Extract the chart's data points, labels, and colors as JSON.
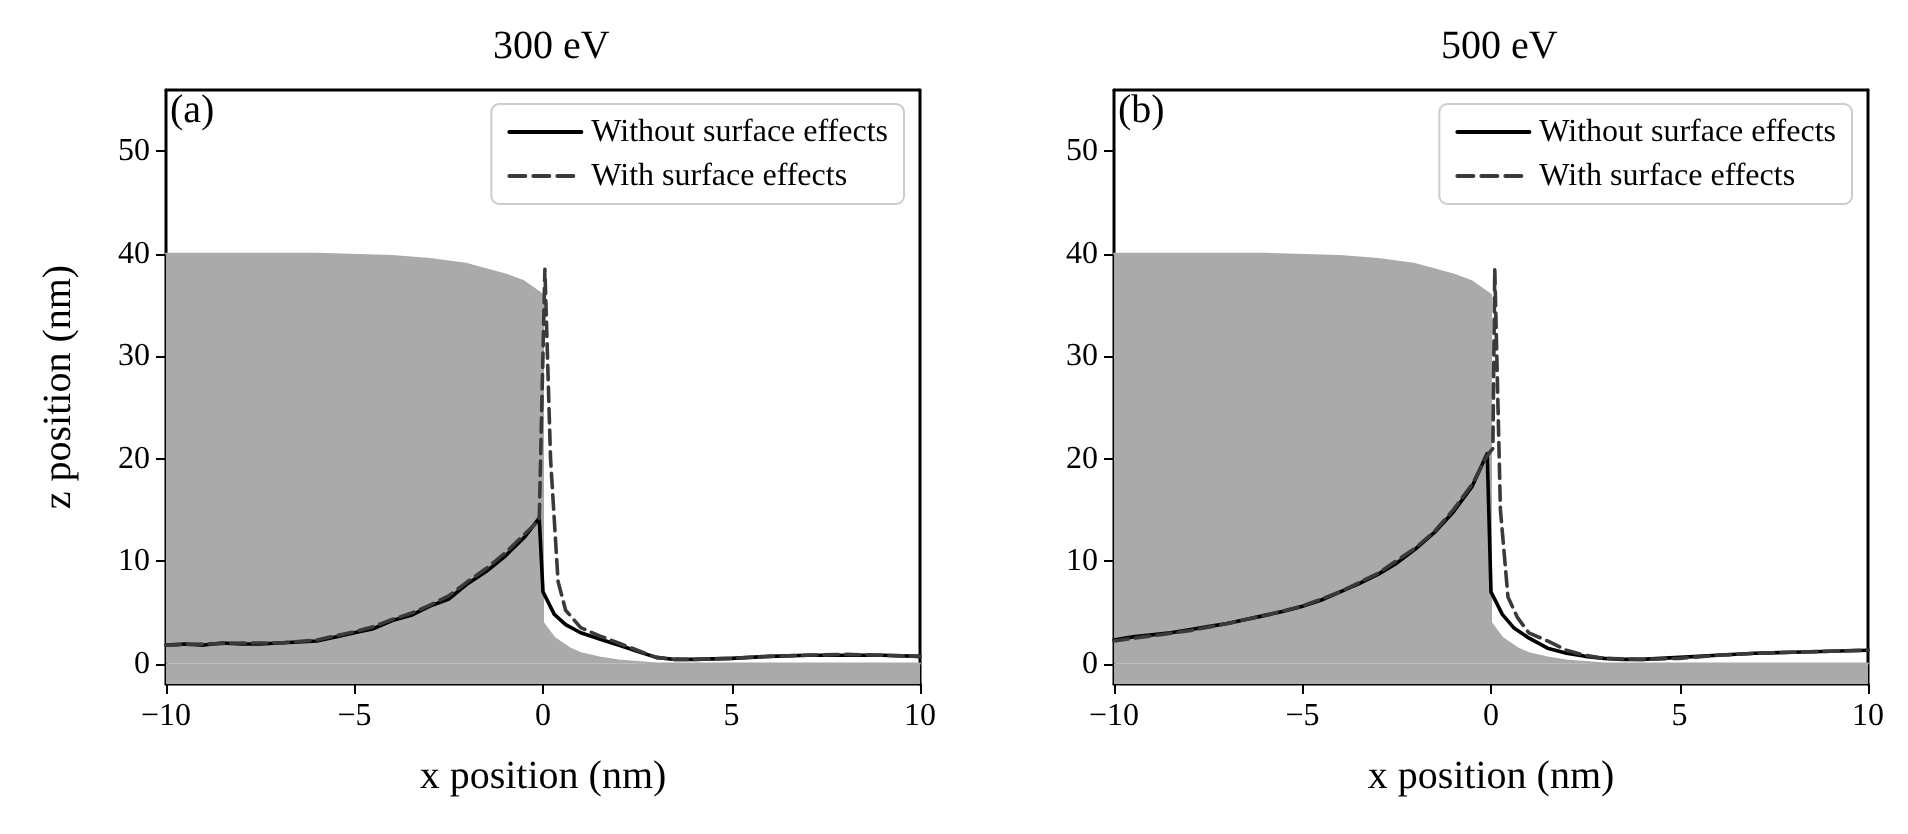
{
  "chart_data": [
    {
      "type": "line",
      "title": "300 eV",
      "xlabel": "x position (nm)",
      "ylabel": "z position (nm)",
      "annotations": [
        "(a)"
      ],
      "xlim": [
        -10,
        10
      ],
      "ylim": [
        -2,
        56
      ],
      "xticks": [
        -10,
        -5,
        0,
        5,
        10
      ],
      "yticks": [
        0,
        10,
        20,
        30,
        40,
        50
      ],
      "legend": "top right",
      "bands": [
        {
          "axis": "y",
          "from": -2,
          "to": 0,
          "color": "#aaaaaa"
        }
      ],
      "series": [
        {
          "type": "area",
          "color": "#aaaaaa",
          "x": [
            -10,
            -6,
            -4,
            -3,
            -2,
            -1,
            -0.5,
            0,
            0,
            0.3,
            0.7,
            1,
            1.5,
            2,
            3,
            10
          ],
          "values": [
            40,
            40,
            39.8,
            39.5,
            39,
            38,
            37.3,
            36,
            4,
            2.5,
            1.5,
            1,
            0.6,
            0.3,
            0,
            0
          ]
        },
        {
          "name": "Without surface effects",
          "color": "#000000",
          "line_style": "solid",
          "x": [
            -10,
            -9.5,
            -9,
            -8.5,
            -8,
            -7.5,
            -7,
            -6.5,
            -6,
            -5.5,
            -5,
            -4.5,
            -4,
            -3.5,
            -3,
            -2.5,
            -2,
            -1.5,
            -1,
            -0.5,
            -0.1,
            0,
            0.3,
            0.6,
            1,
            1.5,
            2,
            2.5,
            3,
            3.5,
            4,
            5,
            6,
            7,
            8,
            9,
            10
          ],
          "values": [
            1.8,
            1.9,
            1.8,
            2.0,
            1.9,
            1.9,
            2.0,
            2.1,
            2.2,
            2.6,
            3.0,
            3.4,
            4.2,
            4.7,
            5.6,
            6.3,
            7.8,
            9.0,
            10.5,
            12.3,
            14.2,
            7.0,
            4.8,
            3.8,
            3.0,
            2.4,
            1.8,
            1.2,
            0.6,
            0.4,
            0.4,
            0.5,
            0.7,
            0.8,
            0.8,
            0.8,
            0.7
          ]
        },
        {
          "name": "With surface effects",
          "color": "#3a3a3a",
          "line_style": "dashed",
          "x": [
            -10,
            -9,
            -8,
            -7,
            -6,
            -5.5,
            -5,
            -4.5,
            -4,
            -3.5,
            -3,
            -2.5,
            -2,
            -1.5,
            -1,
            -0.5,
            -0.1,
            0.05,
            0.2,
            0.4,
            0.6,
            1,
            1.5,
            2,
            2.5,
            3,
            3.5,
            4,
            5,
            6,
            7,
            8,
            9,
            10
          ],
          "values": [
            1.8,
            1.9,
            2.0,
            2.0,
            2.3,
            2.7,
            3.1,
            3.6,
            4.3,
            4.9,
            5.7,
            6.6,
            8.0,
            9.3,
            10.8,
            12.6,
            14.0,
            38.5,
            20,
            8,
            5.2,
            3.5,
            2.7,
            2.0,
            1.3,
            0.6,
            0.4,
            0.4,
            0.5,
            0.7,
            0.8,
            0.9,
            0.8,
            0.7
          ]
        }
      ]
    },
    {
      "type": "line",
      "title": "500 eV",
      "xlabel": "x position (nm)",
      "annotations": [
        "(b)"
      ],
      "xlim": [
        -10,
        10
      ],
      "ylim": [
        -2,
        56
      ],
      "xticks": [
        -10,
        -5,
        0,
        5,
        10
      ],
      "yticks": [
        0,
        10,
        20,
        30,
        40,
        50
      ],
      "legend": "top right",
      "bands": [
        {
          "axis": "y",
          "from": -2,
          "to": 0,
          "color": "#aaaaaa"
        }
      ],
      "series": [
        {
          "type": "area",
          "color": "#aaaaaa",
          "x": [
            -10,
            -6,
            -4,
            -3,
            -2,
            -1,
            -0.5,
            0,
            0,
            0.3,
            0.7,
            1,
            1.5,
            2,
            3,
            10
          ],
          "values": [
            40,
            40,
            39.8,
            39.5,
            39,
            38,
            37.3,
            36,
            4,
            2.5,
            1.5,
            1,
            0.6,
            0.3,
            0,
            0
          ]
        },
        {
          "name": "Without surface effects",
          "color": "#000000",
          "line_style": "solid",
          "x": [
            -10,
            -9.5,
            -9,
            -8.5,
            -8,
            -7.5,
            -7,
            -6.5,
            -6,
            -5.5,
            -5,
            -4.5,
            -4,
            -3.5,
            -3,
            -2.5,
            -2,
            -1.5,
            -1,
            -0.5,
            -0.1,
            0,
            0.3,
            0.6,
            1,
            1.5,
            2,
            2.5,
            3,
            3.5,
            4,
            5,
            6,
            7,
            8,
            9,
            10
          ],
          "values": [
            2.3,
            2.6,
            2.8,
            3.0,
            3.3,
            3.6,
            3.9,
            4.3,
            4.7,
            5.1,
            5.6,
            6.2,
            7.0,
            7.8,
            8.7,
            9.8,
            11.2,
            12.8,
            14.8,
            17.3,
            20.5,
            7.0,
            4.8,
            3.5,
            2.5,
            1.5,
            1.0,
            0.7,
            0.5,
            0.4,
            0.4,
            0.6,
            0.8,
            1.0,
            1.1,
            1.2,
            1.3
          ]
        },
        {
          "name": "With surface effects",
          "color": "#3a3a3a",
          "line_style": "dashed",
          "x": [
            -10,
            -9,
            -8,
            -7,
            -6,
            -5,
            -4,
            -3,
            -2,
            -1.5,
            -1,
            -0.5,
            -0.1,
            0.05,
            0.1,
            0.25,
            0.45,
            0.7,
            1,
            1.5,
            2,
            2.5,
            3,
            4,
            5,
            6,
            7,
            8,
            9,
            10
          ],
          "values": [
            2.2,
            2.7,
            3.2,
            3.9,
            4.7,
            5.6,
            7.0,
            8.8,
            11.3,
            12.9,
            15.0,
            17.5,
            20.3,
            21,
            38.5,
            15,
            6.5,
            4.5,
            3.0,
            2.2,
            1.3,
            0.8,
            0.5,
            0.4,
            0.5,
            0.8,
            1.0,
            1.1,
            1.2,
            1.3
          ]
        }
      ]
    }
  ]
}
